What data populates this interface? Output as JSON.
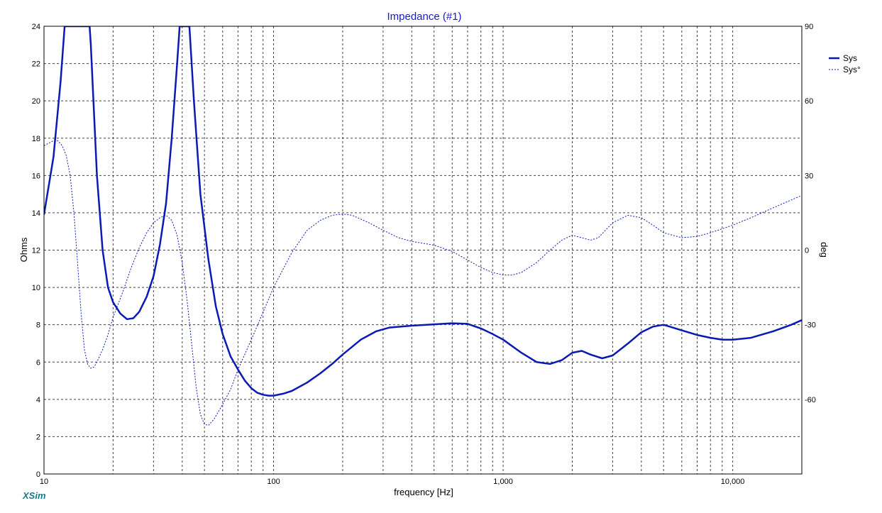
{
  "app": {
    "brand": "XSim"
  },
  "colors": {
    "title": "#1a1acc",
    "series": "#0a1ab4",
    "brand": "#1a7a8a",
    "grid": "#444444"
  },
  "chart_data": {
    "type": "line",
    "title": "Impedance (#1)",
    "xlabel": "frequency [Hz]",
    "ylabel": "Ohms",
    "y2label": "deg",
    "xscale": "log",
    "xlim": [
      10,
      20000
    ],
    "ylim": [
      0,
      24
    ],
    "y2lim": [
      -90,
      90
    ],
    "grid": true,
    "legend_position": "top-right",
    "x_ticks": [
      {
        "value": 10,
        "label": "10"
      },
      {
        "value": 100,
        "label": "100"
      },
      {
        "value": 1000,
        "label": "1,000"
      },
      {
        "value": 10000,
        "label": "10,000"
      }
    ],
    "y_ticks": [
      0,
      2,
      4,
      6,
      8,
      10,
      12,
      14,
      16,
      18,
      20,
      22,
      24
    ],
    "y2_ticks": [
      {
        "value": 90,
        "label": "90"
      },
      {
        "value": 60,
        "label": "60"
      },
      {
        "value": 30,
        "label": "30"
      },
      {
        "value": 0,
        "label": "0"
      },
      {
        "value": -30,
        "label": "-30"
      },
      {
        "value": -60,
        "label": "-60"
      }
    ],
    "series": [
      {
        "name": "Sys",
        "axis": "left",
        "style": "solid",
        "points": [
          [
            10,
            13.9
          ],
          [
            11,
            17
          ],
          [
            11.8,
            21
          ],
          [
            12.3,
            24
          ],
          [
            15.8,
            24
          ],
          [
            16,
            23
          ],
          [
            17,
            16
          ],
          [
            18,
            12
          ],
          [
            19,
            10
          ],
          [
            20,
            9.2
          ],
          [
            21.5,
            8.6
          ],
          [
            23,
            8.3
          ],
          [
            24.5,
            8.35
          ],
          [
            26,
            8.7
          ],
          [
            28,
            9.5
          ],
          [
            30,
            10.6
          ],
          [
            32,
            12.3
          ],
          [
            34,
            14.5
          ],
          [
            36,
            18
          ],
          [
            38,
            22
          ],
          [
            39,
            24
          ],
          [
            43,
            24
          ],
          [
            45,
            20
          ],
          [
            48,
            15
          ],
          [
            52,
            11.5
          ],
          [
            56,
            9
          ],
          [
            60,
            7.5
          ],
          [
            65,
            6.3
          ],
          [
            70,
            5.6
          ],
          [
            75,
            5
          ],
          [
            80,
            4.6
          ],
          [
            85,
            4.35
          ],
          [
            90,
            4.25
          ],
          [
            95,
            4.2
          ],
          [
            100,
            4.2
          ],
          [
            110,
            4.3
          ],
          [
            120,
            4.45
          ],
          [
            140,
            4.9
          ],
          [
            160,
            5.4
          ],
          [
            180,
            5.9
          ],
          [
            200,
            6.4
          ],
          [
            240,
            7.2
          ],
          [
            280,
            7.65
          ],
          [
            320,
            7.85
          ],
          [
            400,
            7.95
          ],
          [
            500,
            8.02
          ],
          [
            600,
            8.08
          ],
          [
            700,
            8.05
          ],
          [
            800,
            7.8
          ],
          [
            900,
            7.5
          ],
          [
            1000,
            7.2
          ],
          [
            1200,
            6.5
          ],
          [
            1400,
            6
          ],
          [
            1600,
            5.9
          ],
          [
            1800,
            6.1
          ],
          [
            2000,
            6.5
          ],
          [
            2200,
            6.6
          ],
          [
            2400,
            6.4
          ],
          [
            2700,
            6.2
          ],
          [
            3000,
            6.35
          ],
          [
            3500,
            7
          ],
          [
            4000,
            7.6
          ],
          [
            4500,
            7.9
          ],
          [
            5000,
            8
          ],
          [
            6000,
            7.7
          ],
          [
            7000,
            7.45
          ],
          [
            8000,
            7.3
          ],
          [
            9000,
            7.2
          ],
          [
            10000,
            7.2
          ],
          [
            12000,
            7.3
          ],
          [
            15000,
            7.65
          ],
          [
            18000,
            8
          ],
          [
            20000,
            8.25
          ]
        ]
      },
      {
        "name": "Sys°",
        "axis": "right",
        "style": "dashed",
        "points": [
          [
            10,
            42
          ],
          [
            10.5,
            43
          ],
          [
            11,
            44
          ],
          [
            11.5,
            44
          ],
          [
            12,
            42
          ],
          [
            12.5,
            38
          ],
          [
            13,
            30
          ],
          [
            13.5,
            15
          ],
          [
            14,
            -5
          ],
          [
            14.5,
            -25
          ],
          [
            15,
            -40
          ],
          [
            15.5,
            -46
          ],
          [
            16,
            -47.5
          ],
          [
            16.5,
            -47
          ],
          [
            17,
            -45
          ],
          [
            18,
            -40
          ],
          [
            19,
            -34
          ],
          [
            20,
            -27
          ],
          [
            22,
            -17
          ],
          [
            24,
            -7
          ],
          [
            26,
            1
          ],
          [
            28,
            7
          ],
          [
            30,
            11
          ],
          [
            32,
            13
          ],
          [
            34,
            14
          ],
          [
            36,
            12
          ],
          [
            38,
            6
          ],
          [
            40,
            -5
          ],
          [
            42,
            -20
          ],
          [
            44,
            -38
          ],
          [
            46,
            -55
          ],
          [
            48,
            -66
          ],
          [
            50,
            -70
          ],
          [
            52,
            -70.5
          ],
          [
            55,
            -68
          ],
          [
            60,
            -62
          ],
          [
            65,
            -56
          ],
          [
            70,
            -48
          ],
          [
            80,
            -36
          ],
          [
            90,
            -25
          ],
          [
            100,
            -15
          ],
          [
            120,
            -1
          ],
          [
            140,
            8
          ],
          [
            160,
            12
          ],
          [
            180,
            14
          ],
          [
            200,
            14.5
          ],
          [
            220,
            14
          ],
          [
            260,
            11
          ],
          [
            300,
            8
          ],
          [
            350,
            5
          ],
          [
            400,
            3.5
          ],
          [
            500,
            2
          ],
          [
            600,
            -0.5
          ],
          [
            700,
            -4
          ],
          [
            800,
            -7
          ],
          [
            900,
            -9
          ],
          [
            1000,
            -10
          ],
          [
            1100,
            -10
          ],
          [
            1200,
            -9
          ],
          [
            1400,
            -5
          ],
          [
            1600,
            0
          ],
          [
            1800,
            4
          ],
          [
            2000,
            6
          ],
          [
            2200,
            5
          ],
          [
            2400,
            4
          ],
          [
            2600,
            5
          ],
          [
            3000,
            11
          ],
          [
            3500,
            14
          ],
          [
            4000,
            13
          ],
          [
            4500,
            10
          ],
          [
            5000,
            7
          ],
          [
            6000,
            5
          ],
          [
            7000,
            5.5
          ],
          [
            8000,
            7
          ],
          [
            10000,
            10
          ],
          [
            12000,
            13
          ],
          [
            15000,
            17
          ],
          [
            20000,
            22
          ]
        ]
      }
    ]
  }
}
